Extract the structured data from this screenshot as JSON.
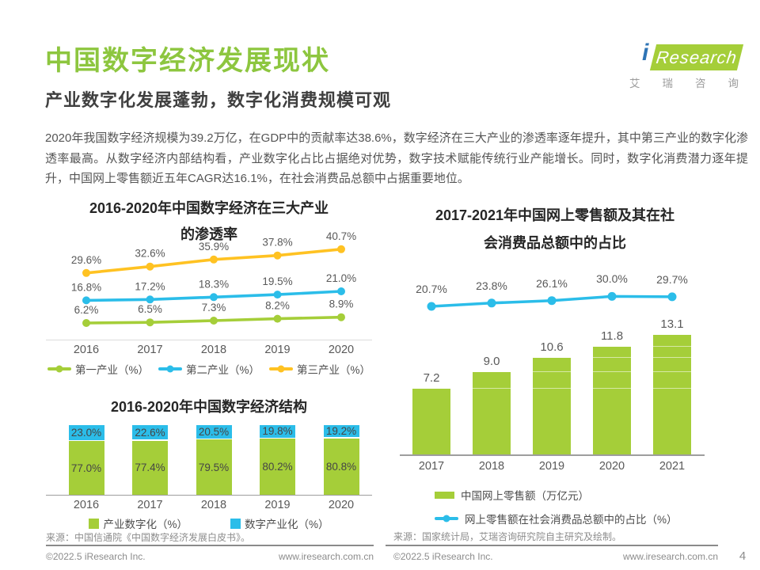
{
  "page": {
    "title": "中国数字经济发展现状",
    "subtitle": "产业数字化发展蓬勃，数字化消费规模可观",
    "body": "2020年我国数字经济规模为39.2万亿，在GDP中的贡献率达38.6%，数字经济在三大产业的渗透率逐年提升，其中第三产业的数字化渗透率最高。从数字经济内部结构看，产业数字化占比占据绝对优势，数字技术赋能传统行业产能增长。同时，数字化消费潜力逐年提升，中国网上零售额近五年CAGR达16.1%，在社会消费品总额中占据重要地位。",
    "page_number": "4"
  },
  "logo": {
    "i": "i",
    "research": "Research",
    "cn": "艾瑞咨询"
  },
  "sources": {
    "left": "来源：中国信通院《中国数字经济发展白皮书》。",
    "right": "来源：国家统计局，艾瑞咨询研究院自主研究及绘制。"
  },
  "footer": {
    "left_copyright": "©2022.5 iResearch Inc.",
    "left_site": "www.iresearch.com.cn",
    "right_copyright": "©2022.5 iResearch Inc.",
    "right_site": "www.iresearch.com.cn"
  },
  "colors": {
    "brand_green": "#8DC63F",
    "chart_green": "#A5CE39",
    "chart_blue": "#2BBDE9",
    "chart_yellow": "#FFC222",
    "logo_i_blue": "#2E74B5",
    "label_gray": "#595959"
  },
  "chart_data": [
    {
      "id": "penetration",
      "type": "line",
      "title": "2016-2020年中国数字经济在三大产业的渗透率",
      "title_lines": [
        "2016-2020年中国数字经济在三大产业",
        "的渗透率"
      ],
      "categories": [
        "2016",
        "2017",
        "2018",
        "2019",
        "2020"
      ],
      "series": [
        {
          "name": "第一产业（%）",
          "color": "#A5CE39",
          "values": [
            6.2,
            6.5,
            7.3,
            8.2,
            8.9
          ],
          "labels": [
            "6.2%",
            "6.5%",
            "7.3%",
            "8.2%",
            "8.9%"
          ]
        },
        {
          "name": "第二产业（%）",
          "color": "#2BBDE9",
          "values": [
            16.8,
            17.2,
            18.3,
            19.5,
            21.0
          ],
          "labels": [
            "16.8%",
            "17.2%",
            "18.3%",
            "19.5%",
            "21.0%"
          ]
        },
        {
          "name": "第三产业（%）",
          "color": "#FFC222",
          "values": [
            29.6,
            32.6,
            35.9,
            37.8,
            40.7
          ],
          "labels": [
            "29.6%",
            "32.6%",
            "35.9%",
            "37.8%",
            "40.7%"
          ]
        }
      ],
      "ylim": [
        0,
        45
      ],
      "grid": false,
      "legend_position": "bottom"
    },
    {
      "id": "structure",
      "type": "bar",
      "stacked": true,
      "title": "2016-2020年中国数字经济结构",
      "categories": [
        "2016",
        "2017",
        "2018",
        "2019",
        "2020"
      ],
      "series": [
        {
          "name": "产业数字化（%）",
          "color": "#A5CE39",
          "values": [
            77.0,
            77.4,
            79.5,
            80.2,
            80.8
          ],
          "labels": [
            "77.0%",
            "77.4%",
            "79.5%",
            "80.2%",
            "80.8%"
          ]
        },
        {
          "name": "数字产业化（%）",
          "color": "#2BBDE9",
          "values": [
            23.0,
            22.6,
            20.5,
            19.8,
            19.2
          ],
          "labels": [
            "23.0%",
            "22.6%",
            "20.5%",
            "19.8%",
            "19.2%"
          ]
        }
      ],
      "ylim": [
        0,
        100
      ],
      "grid": false,
      "legend_position": "bottom"
    },
    {
      "id": "retail",
      "type": "bar+line",
      "title": "2017-2021年中国网上零售额及其在社会消费品总额中的占比",
      "title_lines": [
        "2017-2021年中国网上零售额及其在社",
        "会消费品总额中的占比"
      ],
      "categories": [
        "2017",
        "2018",
        "2019",
        "2020",
        "2021"
      ],
      "series": [
        {
          "name": "中国网上零售额（万亿元）",
          "type": "bar",
          "color": "#A5CE39",
          "values": [
            7.2,
            9.0,
            10.6,
            11.8,
            13.1
          ],
          "labels": [
            "7.2",
            "9.0",
            "10.6",
            "11.8",
            "13.1"
          ]
        },
        {
          "name": "网上零售额在社会消费品总额中的占比（%）",
          "type": "line",
          "color": "#2BBDE9",
          "values": [
            20.7,
            23.8,
            26.1,
            30.0,
            29.7
          ],
          "labels": [
            "20.7%",
            "23.8%",
            "26.1%",
            "30.0%",
            "29.7%"
          ]
        }
      ],
      "bar_ylim": [
        0,
        14
      ],
      "line_ylim": [
        0,
        35
      ],
      "grid": false,
      "legend_position": "bottom"
    }
  ]
}
